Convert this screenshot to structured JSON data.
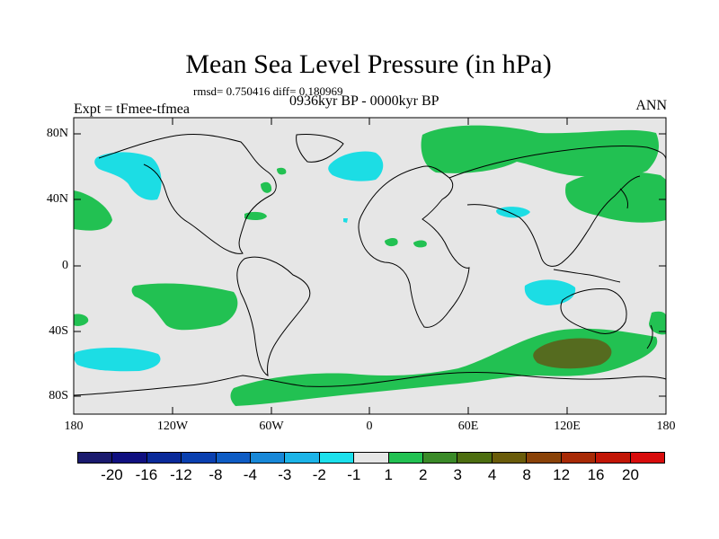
{
  "title": "Mean Sea Level Pressure (in hPa)",
  "stats": "rmsd= 0.750416 diff= 0.180969",
  "experiment": "Expt = tFmee-tfmea",
  "period": "0936kyr BP - 0000kyr BP",
  "season": "ANN",
  "y_axis": {
    "labels": [
      "80N",
      "40N",
      "0",
      "40S",
      "80S"
    ]
  },
  "x_axis": {
    "labels": [
      "180",
      "120W",
      "60W",
      "0",
      "60E",
      "120E",
      "180"
    ]
  },
  "colorbar": {
    "labels": [
      "-20",
      "-16",
      "-12",
      "-8",
      "-4",
      "-3",
      "-2",
      "-1",
      "1",
      "2",
      "3",
      "4",
      "8",
      "12",
      "16",
      "20"
    ],
    "colors": [
      "#1a1a6e",
      "#101080",
      "#0a2a9a",
      "#0a40b0",
      "#0e5cc4",
      "#1888d8",
      "#1cb4e8",
      "#1ce0ec",
      "#e6e6e6",
      "#22c152",
      "#3a8a28",
      "#4d6e10",
      "#6a5c0a",
      "#8a4208",
      "#a82a06",
      "#c21606",
      "#d80c0c"
    ]
  },
  "colors": {
    "ocean_land_bg": "#e6e6e6",
    "positive_small": "#22c152",
    "positive_medium": "#556b1f",
    "negative_small": "#1cdde4"
  }
}
